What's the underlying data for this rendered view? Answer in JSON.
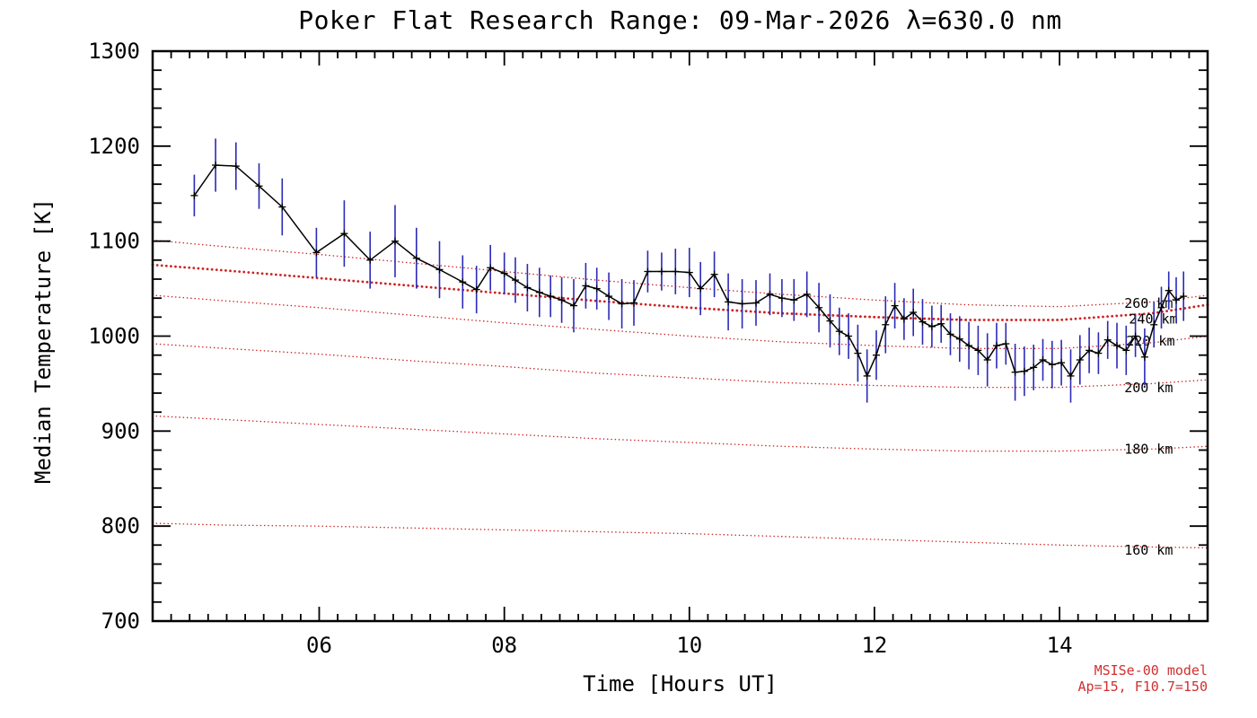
{
  "chart_data": {
    "type": "line",
    "title": "Poker Flat Research Range: 09-Mar-2026 λ=630.0 nm",
    "xlabel": "Time [Hours UT]",
    "ylabel": "Median Temperature [K]",
    "xlim": [
      4.2,
      15.6
    ],
    "ylim": [
      700,
      1300
    ],
    "x_major_ticks": [
      6,
      8,
      10,
      12,
      14
    ],
    "x_tick_labels": [
      "06",
      "08",
      "10",
      "12",
      "14"
    ],
    "x_minor_step": 0.2,
    "y_major_ticks": [
      700,
      800,
      900,
      1000,
      1100,
      1200,
      1300
    ],
    "y_minor_step": 20,
    "grid": false,
    "legend": "none",
    "colors": {
      "data": "#000000",
      "error": "#2a2ab8",
      "model": "#cc2222",
      "annotation": "#d03030"
    },
    "series": [
      {
        "name": "measured-median-temperature",
        "x": [
          4.65,
          4.88,
          5.1,
          5.35,
          5.6,
          5.97,
          6.27,
          6.55,
          6.82,
          7.05,
          7.3,
          7.55,
          7.7,
          7.85,
          8.0,
          8.12,
          8.25,
          8.38,
          8.5,
          8.62,
          8.75,
          8.88,
          9.0,
          9.13,
          9.27,
          9.4,
          9.55,
          9.7,
          9.85,
          10.0,
          10.12,
          10.27,
          10.42,
          10.57,
          10.72,
          10.87,
          11.0,
          11.13,
          11.27,
          11.4,
          11.52,
          11.62,
          11.72,
          11.82,
          11.92,
          12.02,
          12.12,
          12.22,
          12.32,
          12.42,
          12.52,
          12.62,
          12.72,
          12.82,
          12.92,
          13.02,
          13.12,
          13.22,
          13.32,
          13.42,
          13.52,
          13.62,
          13.72,
          13.82,
          13.92,
          14.02,
          14.12,
          14.22,
          14.32,
          14.42,
          14.52,
          14.62,
          14.72,
          14.82,
          14.92,
          15.02,
          15.1,
          15.18,
          15.26,
          15.34
        ],
        "y": [
          1148,
          1180,
          1179,
          1158,
          1136,
          1088,
          1108,
          1080,
          1100,
          1082,
          1070,
          1057,
          1049,
          1072,
          1066,
          1059,
          1051,
          1046,
          1042,
          1038,
          1032,
          1053,
          1050,
          1042,
          1034,
          1035,
          1068,
          1068,
          1068,
          1067,
          1050,
          1065,
          1036,
          1034,
          1035,
          1044,
          1040,
          1038,
          1044,
          1030,
          1016,
          1005,
          1000,
          982,
          958,
          980,
          1012,
          1032,
          1018,
          1025,
          1015,
          1010,
          1013,
          1002,
          997,
          990,
          985,
          975,
          990,
          992,
          962,
          963,
          967,
          975,
          970,
          972,
          958,
          975,
          985,
          982,
          996,
          990,
          985,
          1000,
          978,
          1012,
          1030,
          1048,
          1038,
          1042
        ],
        "yerr": [
          22,
          28,
          25,
          24,
          30,
          26,
          35,
          30,
          38,
          32,
          30,
          28,
          25,
          24,
          22,
          24,
          25,
          26,
          22,
          24,
          28,
          24,
          22,
          25,
          26,
          24,
          22,
          20,
          24,
          26,
          28,
          24,
          30,
          26,
          24,
          22,
          20,
          22,
          24,
          26,
          28,
          25,
          24,
          30,
          28,
          26,
          30,
          24,
          22,
          25,
          24,
          22,
          20,
          22,
          24,
          25,
          26,
          28,
          24,
          22,
          30,
          26,
          24,
          22,
          25,
          24,
          28,
          26,
          24,
          22,
          20,
          24,
          26,
          22,
          30,
          24,
          22,
          20,
          24,
          26
        ]
      }
    ],
    "model_curves": [
      {
        "label": "260 km",
        "bold": false,
        "label_x": 14.7,
        "label_y": 1030,
        "x": [
          4.2,
          5,
          6,
          7,
          8,
          9,
          10,
          11,
          12,
          13,
          14,
          15,
          15.6
        ],
        "y": [
          1101,
          1094,
          1086,
          1077,
          1068,
          1059,
          1051,
          1044,
          1038,
          1033,
          1031,
          1036,
          1043
        ]
      },
      {
        "label": "240 km",
        "bold": true,
        "label_x": 14.75,
        "label_y": 1013,
        "x": [
          4.2,
          5,
          6,
          7,
          8,
          9,
          10,
          11,
          12,
          13,
          14,
          15,
          15.6
        ],
        "y": [
          1075,
          1069,
          1061,
          1053,
          1045,
          1037,
          1030,
          1024,
          1020,
          1017,
          1017,
          1024,
          1033
        ]
      },
      {
        "label": "220 km",
        "bold": false,
        "label_x": 14.72,
        "label_y": 990,
        "x": [
          4.2,
          5,
          6,
          7,
          8,
          9,
          10,
          11,
          12,
          13,
          14,
          15,
          15.6
        ],
        "y": [
          1043,
          1037,
          1030,
          1022,
          1014,
          1007,
          1000,
          994,
          990,
          987,
          987,
          993,
          1000
        ]
      },
      {
        "label": "200 km",
        "bold": false,
        "label_x": 14.7,
        "label_y": 941,
        "x": [
          4.2,
          5,
          6,
          7,
          8,
          9,
          10,
          11,
          12,
          13,
          14,
          15,
          15.6
        ],
        "y": [
          992,
          987,
          981,
          974,
          968,
          961,
          956,
          951,
          948,
          946,
          946,
          950,
          954
        ]
      },
      {
        "label": "180 km",
        "bold": false,
        "label_x": 14.7,
        "label_y": 876,
        "x": [
          4.2,
          5,
          6,
          7,
          8,
          9,
          10,
          11,
          12,
          13,
          14,
          15,
          15.6
        ],
        "y": [
          916,
          912,
          907,
          902,
          897,
          892,
          888,
          884,
          881,
          879,
          879,
          881,
          884
        ]
      },
      {
        "label": "160 km",
        "bold": false,
        "label_x": 14.7,
        "label_y": 770,
        "x": [
          4.2,
          5,
          6,
          7,
          8,
          9,
          10,
          11,
          12,
          13,
          14,
          15,
          15.6
        ],
        "y": [
          803,
          801,
          800,
          798,
          796,
          794,
          792,
          789,
          786,
          783,
          780,
          778,
          777
        ]
      }
    ],
    "annotations": [
      "MSISe-00 model",
      "Ap=15, F10.7=150"
    ]
  }
}
